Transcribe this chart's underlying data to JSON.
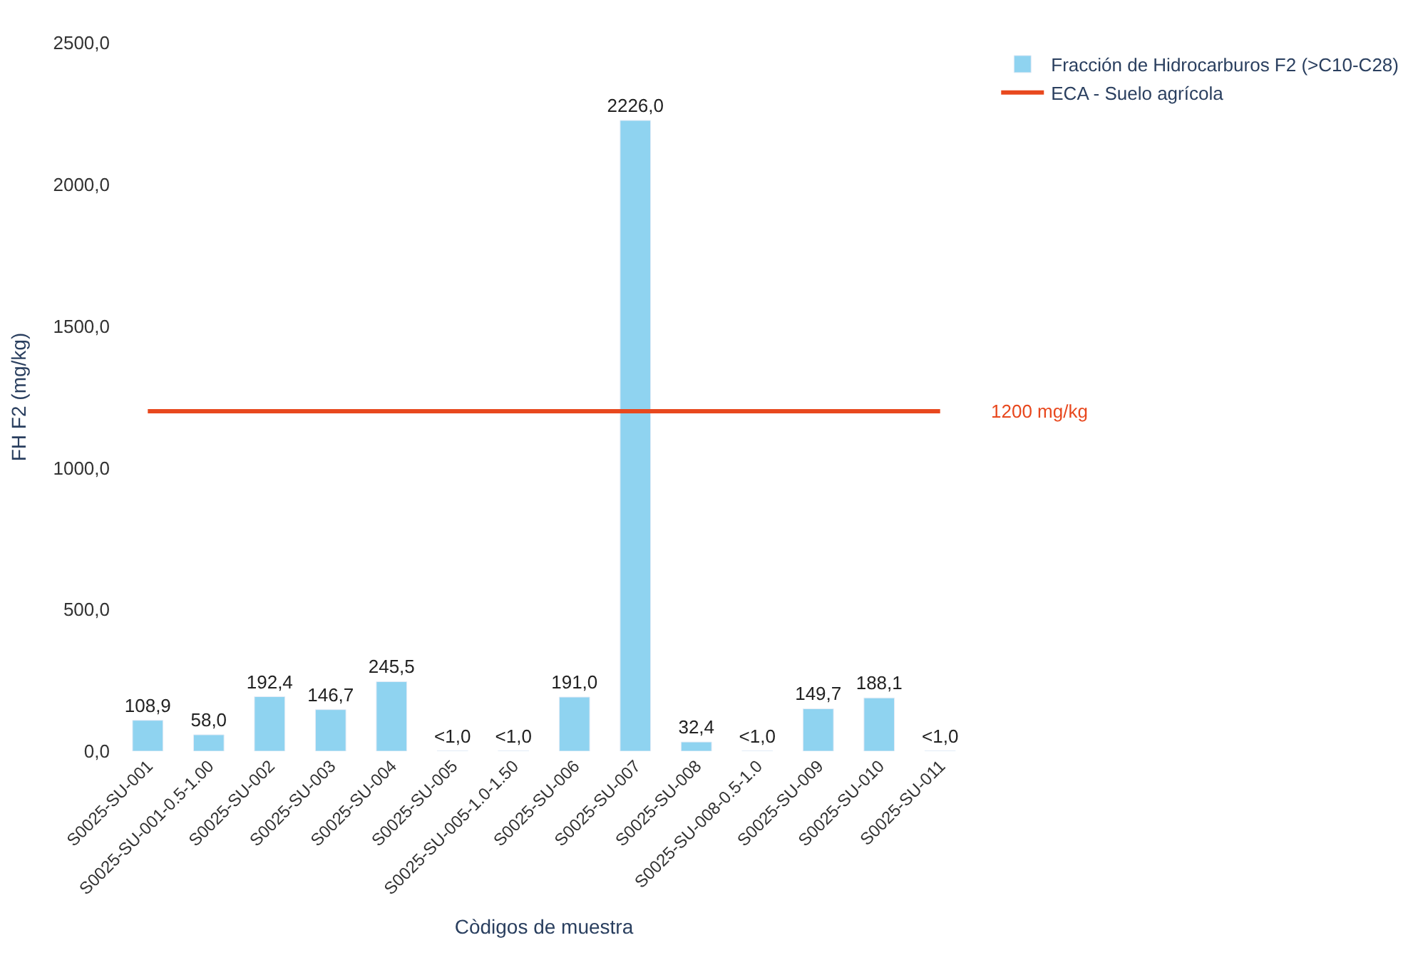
{
  "chart_data": {
    "type": "bar",
    "xlabel": "Còdigos de muestra",
    "ylabel": "FH F2 (mg/kg)",
    "categories": [
      "S0025-SU-001",
      "S0025-SU-001-0.5-1.00",
      "S0025-SU-002",
      "S0025-SU-003",
      "S0025-SU-004",
      "S0025-SU-005",
      "S0025-SU-005-1.0-1.50",
      "S0025-SU-006",
      "S0025-SU-007",
      "S0025-SU-008",
      "S0025-SU-008-0.5-1.0",
      "S0025-SU-009",
      "S0025-SU-010",
      "S0025-SU-011"
    ],
    "series": [
      {
        "name": "Fracción de Hidrocarburos F2 (>C10-C28)",
        "color": "#8fd3f0",
        "values": [
          108.9,
          58.0,
          192.4,
          146.7,
          245.5,
          1.0,
          1.0,
          191.0,
          2226.0,
          32.4,
          1.0,
          149.7,
          188.1,
          1.0
        ],
        "value_labels": [
          "108,9",
          "58,0",
          "192,4",
          "146,7",
          "245,5",
          "<1,0",
          "<1,0",
          "191,0",
          "2226,0",
          "32,4",
          "<1,0",
          "149,7",
          "188,1",
          "<1,0"
        ]
      },
      {
        "name": "ECA - Suelo agrícola",
        "type": "line",
        "color": "#e8481e",
        "values": [
          1200,
          1200,
          1200,
          1200,
          1200,
          1200,
          1200,
          1200,
          1200,
          1200,
          1200,
          1200,
          1200,
          1200
        ]
      }
    ],
    "annotations": [
      "1200 mg/kg"
    ],
    "ylim": [
      0,
      2500
    ],
    "yticks": [
      {
        "value": 0,
        "label": "0,0"
      },
      {
        "value": 500,
        "label": "500,0"
      },
      {
        "value": 1000,
        "label": "1000,0"
      },
      {
        "value": 1500,
        "label": "1500,0"
      },
      {
        "value": 2000,
        "label": "2000,0"
      },
      {
        "value": 2500,
        "label": "2500,0"
      }
    ],
    "legend": "right",
    "marker": "none"
  }
}
